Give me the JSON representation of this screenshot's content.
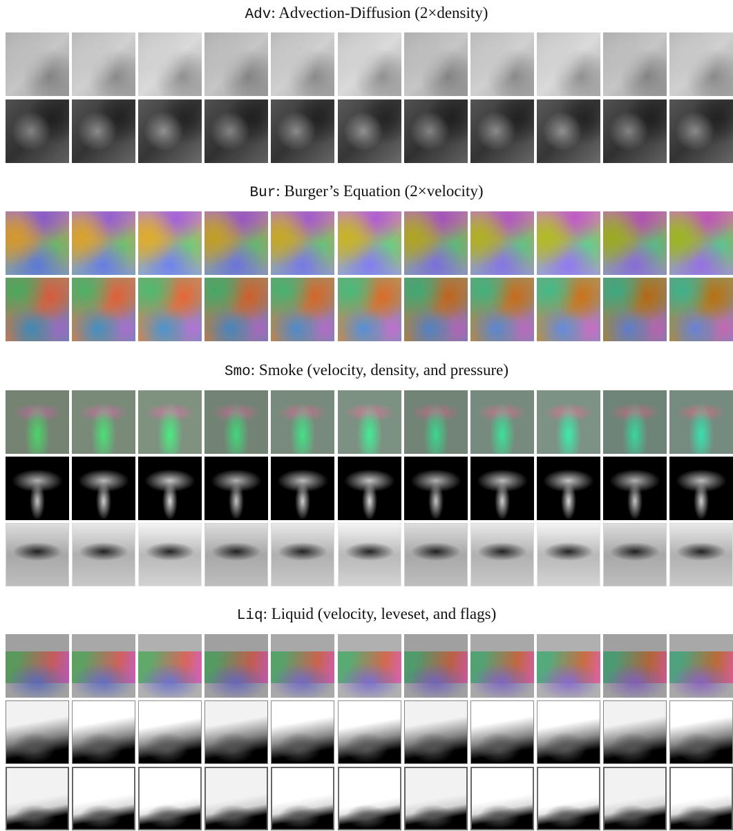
{
  "sections": [
    {
      "code": "Adv",
      "caption": ": Advection-Diffusion (2×density)"
    },
    {
      "code": "Bur",
      "caption": ": Burger’s Equation (2×velocity)"
    },
    {
      "code": "Smo",
      "caption": ": Smoke (velocity, density, and pressure)"
    },
    {
      "code": "Liq",
      "caption": ": Liquid (velocity, leveset, and flags)"
    }
  ]
}
